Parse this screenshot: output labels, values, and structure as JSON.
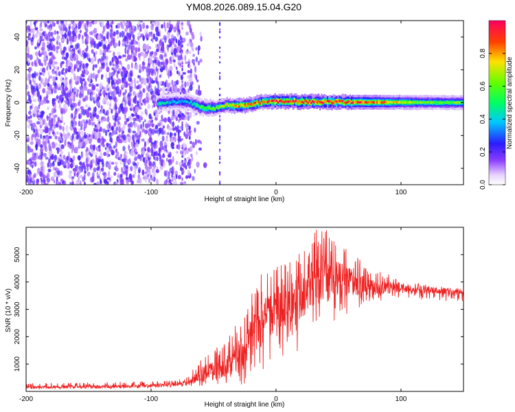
{
  "title": "YM08.2026.089.15.04.G20",
  "colors": {
    "snr_line": "#ee2222",
    "axis": "#000000"
  },
  "chart_data": [
    {
      "type": "heatmap",
      "name": "spectrogram",
      "xlabel": "Height of straight line (km)",
      "ylabel": "Frequency (Hz)",
      "xlim": [
        -200,
        150
      ],
      "ylim": [
        -50,
        50
      ],
      "xticks": [
        -200,
        -100,
        0,
        100
      ],
      "yticks": [
        40,
        20,
        0,
        -20,
        -40
      ],
      "signal_track": {
        "description_points_km": [
          -95,
          -80,
          -70,
          -60,
          -50,
          -40,
          -30,
          -20,
          -10,
          0,
          20,
          40,
          60,
          80,
          100,
          120,
          150
        ],
        "center_freq_hz": [
          -0.5,
          0.5,
          0.3,
          -3.0,
          -3.5,
          -1.5,
          -2.0,
          -1.0,
          0.5,
          0.8,
          0.6,
          0.4,
          0.3,
          0.2,
          0.2,
          0.1,
          0.0
        ],
        "peak_amplitude": [
          0.45,
          0.35,
          0.4,
          0.55,
          0.6,
          0.7,
          0.85,
          0.8,
          0.85,
          0.95,
          0.95,
          0.9,
          0.9,
          0.85,
          0.7,
          0.6,
          0.6
        ]
      },
      "noise_region_km": [
        -200,
        -60
      ],
      "colorbar": {
        "label": "Normalized spectral amplitude",
        "ticks": [
          0.0,
          0.2,
          0.4,
          0.6,
          0.8
        ],
        "tick_labels": [
          "0.0",
          "0.2",
          "0.4",
          "0.6",
          "0.8"
        ],
        "range": [
          0,
          1
        ]
      }
    },
    {
      "type": "line",
      "name": "snr",
      "xlabel": "Height of straight line (km)",
      "ylabel": "SNR (10 * v/v)",
      "xlim": [
        -200,
        150
      ],
      "ylim": [
        0,
        6000
      ],
      "xticks": [
        -200,
        -100,
        0,
        100
      ],
      "yticks": [
        1000,
        2000,
        3000,
        4000,
        5000
      ],
      "envelope": {
        "x": [
          -200,
          -120,
          -80,
          -70,
          -60,
          -55,
          -50,
          -40,
          -30,
          -20,
          -10,
          0,
          10,
          20,
          30,
          40,
          50,
          60,
          70,
          80,
          100,
          120,
          150
        ],
        "mean": [
          150,
          180,
          250,
          350,
          600,
          800,
          700,
          900,
          1400,
          2000,
          2600,
          3000,
          3200,
          3500,
          4000,
          4200,
          4100,
          4000,
          3900,
          3800,
          3800,
          3700,
          3600
        ],
        "max": [
          300,
          350,
          400,
          550,
          1300,
          1500,
          1500,
          1900,
          2700,
          3700,
          4500,
          4700,
          4800,
          5300,
          6000,
          6000,
          5400,
          5300,
          4600,
          4400,
          4200,
          3900,
          3800
        ],
        "min": [
          80,
          100,
          150,
          200,
          100,
          50,
          50,
          100,
          200,
          400,
          800,
          1200,
          1400,
          1500,
          2000,
          2400,
          2500,
          2800,
          3200,
          3300,
          3400,
          3300,
          3300
        ]
      }
    }
  ]
}
